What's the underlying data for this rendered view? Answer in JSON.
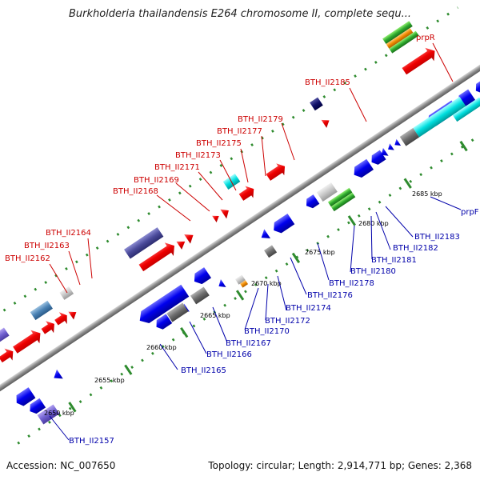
{
  "title": "Burkholderia thailandensis E264 chromosome II, complete sequ...",
  "footer": {
    "accession": "Accession: NC_007650",
    "topology": "Topology: circular; Length: 2,914,771 bp; Genes: 2,368"
  },
  "scale_labels": [
    "2650 kbp",
    "2655 kbp",
    "2660 kbp",
    "2665 kbp",
    "2670 kbp",
    "2675 kbp",
    "2680 kbp",
    "2685 kbp"
  ],
  "labels_top": [
    "BTH_II2162",
    "BTH_II2163",
    "BTH_II2164",
    "BTH_II2168",
    "BTH_II2169",
    "BTH_II2171",
    "BTH_II2173",
    "BTH_II2175",
    "BTH_II2177",
    "BTH_II2179",
    "BTH_II2185",
    "prpR"
  ],
  "labels_bottom": [
    "BTH_II2157",
    "BTH_II2165",
    "BTH_II2166",
    "BTH_II2167",
    "BTH_II2170",
    "BTH_II2172",
    "BTH_II2174",
    "BTH_II2176",
    "BTH_II2178",
    "BTH_II2180",
    "BTH_II2181",
    "BTH_II2182",
    "BTH_II2183",
    "prpF"
  ],
  "colors": {
    "backbone": "#8c8c8c",
    "forward_genes": "#ee0000",
    "reverse_genes": "#0000ee",
    "tick_marks": "#2e8b2e",
    "label_top": "#cc0000",
    "label_bottom": "#0000aa"
  }
}
